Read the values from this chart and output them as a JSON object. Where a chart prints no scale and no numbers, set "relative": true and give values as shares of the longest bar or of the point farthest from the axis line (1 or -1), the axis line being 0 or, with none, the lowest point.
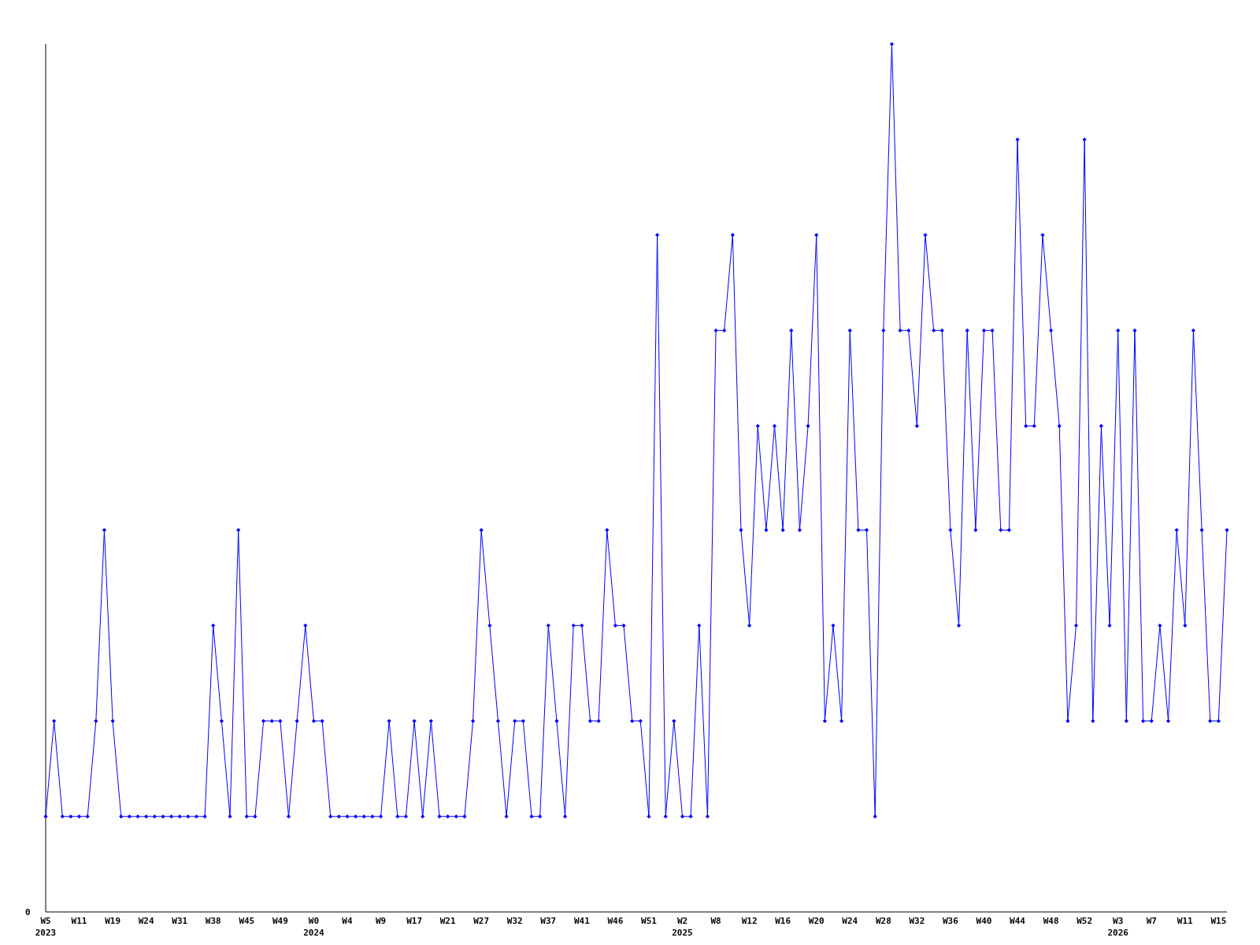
{
  "chart_data": {
    "type": "line",
    "relative": true,
    "marker": "diamond",
    "line_style": "solid",
    "annotations": [
      "0"
    ],
    "categories": [
      "W5\n2023",
      null,
      null,
      null,
      "W11",
      null,
      null,
      null,
      "W19",
      null,
      null,
      null,
      "W24",
      null,
      null,
      null,
      "W31",
      null,
      null,
      null,
      "W38",
      null,
      null,
      null,
      "W45",
      null,
      null,
      null,
      "W49",
      null,
      null,
      null,
      "W0\n2024",
      null,
      null,
      null,
      "W4",
      null,
      null,
      null,
      "W9",
      null,
      null,
      null,
      "W17",
      null,
      null,
      null,
      "W21",
      null,
      null,
      null,
      "W27",
      null,
      null,
      null,
      "W32",
      null,
      null,
      null,
      "W37",
      null,
      null,
      null,
      "W41",
      null,
      null,
      null,
      "W46",
      null,
      null,
      null,
      "W51",
      null,
      null,
      null,
      "W2\n2025",
      null,
      null,
      null,
      "W8",
      null,
      null,
      null,
      "W12",
      null,
      null,
      null,
      "W16",
      null,
      null,
      null,
      "W20",
      null,
      null,
      null,
      "W24",
      null,
      null,
      null,
      "W28",
      null,
      null,
      null,
      "W32",
      null,
      null,
      null,
      "W36",
      null,
      null,
      null,
      "W40",
      null,
      null,
      null,
      "W44",
      null,
      null,
      null,
      "W48",
      null,
      null,
      null,
      "W52",
      null,
      null,
      null,
      "W3\n2026",
      null,
      null,
      null,
      "W7",
      null,
      null,
      null,
      "W11",
      null,
      null,
      null,
      "W15",
      null
    ],
    "series": [
      {
        "color": "#0000ff",
        "values": [
          0.11,
          0.22,
          0.11,
          0.11,
          0.11,
          0.11,
          0.22,
          0.44,
          0.22,
          0.11,
          0.11,
          0.11,
          0.11,
          0.11,
          0.11,
          0.11,
          0.11,
          0.11,
          0.11,
          0.11,
          0.33,
          0.22,
          0.11,
          0.44,
          0.11,
          0.11,
          0.22,
          0.22,
          0.22,
          0.11,
          0.22,
          0.33,
          0.22,
          0.22,
          0.11,
          0.11,
          0.11,
          0.11,
          0.11,
          0.11,
          0.11,
          0.22,
          0.11,
          0.11,
          0.22,
          0.11,
          0.22,
          0.11,
          0.11,
          0.11,
          0.11,
          0.22,
          0.44,
          0.33,
          0.22,
          0.11,
          0.22,
          0.22,
          0.11,
          0.11,
          0.33,
          0.22,
          0.11,
          0.33,
          0.33,
          0.22,
          0.22,
          0.44,
          0.33,
          0.33,
          0.22,
          0.22,
          0.11,
          0.78,
          0.11,
          0.22,
          0.11,
          0.11,
          0.33,
          0.11,
          0.67,
          0.67,
          0.78,
          0.44,
          0.33,
          0.56,
          0.44,
          0.56,
          0.44,
          0.67,
          0.44,
          0.56,
          0.78,
          0.22,
          0.33,
          0.22,
          0.67,
          0.44,
          0.44,
          0.11,
          0.67,
          1,
          0.67,
          0.67,
          0.56,
          0.78,
          0.67,
          0.67,
          0.44,
          0.33,
          0.67,
          0.44,
          0.67,
          0.67,
          0.44,
          0.44,
          0.89,
          0.56,
          0.56,
          0.78,
          0.67,
          0.56,
          0.22,
          0.33,
          0.89,
          0.22,
          0.56,
          0.33,
          0.67,
          0.22,
          0.67,
          0.22,
          0.22,
          0.33,
          0.22,
          0.44,
          0.33,
          0.67,
          0.44,
          0.22,
          0.22,
          0.44
        ]
      }
    ]
  }
}
